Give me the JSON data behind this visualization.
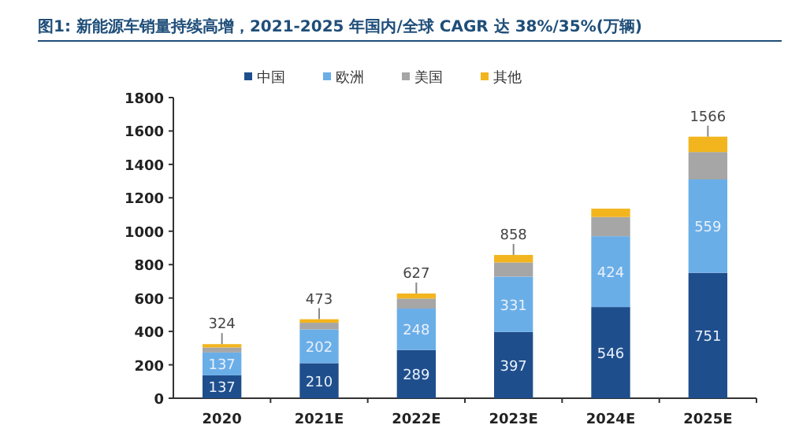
{
  "chart_data": {
    "type": "bar",
    "stacked": true,
    "title": "图1: 新能源车销量持续高增，2021-2025 年国内/全球 CAGR 达 38%/35%(万辆)",
    "categories": [
      "2020",
      "2021E",
      "2022E",
      "2023E",
      "2024E",
      "2025E"
    ],
    "series": [
      {
        "name": "中国",
        "color": "#1f4e8c",
        "values": [
          137,
          210,
          289,
          397,
          546,
          751
        ],
        "value_labels": [
          "137",
          "210",
          "289",
          "397",
          "546",
          "751"
        ]
      },
      {
        "name": "欧洲",
        "color": "#6aaee8",
        "values": [
          137,
          202,
          248,
          331,
          424,
          559
        ],
        "value_labels": [
          "137",
          "202",
          "248",
          "331",
          "424",
          "559"
        ]
      },
      {
        "name": "美国",
        "color": "#a6a6a6",
        "values": [
          30,
          40,
          60,
          85,
          115,
          164
        ]
      },
      {
        "name": "其他",
        "color": "#f2b51d",
        "values": [
          20,
          21,
          30,
          45,
          50,
          92
        ]
      }
    ],
    "totals": [
      "324",
      "473",
      "627",
      "858",
      null,
      "1566"
    ],
    "ylim": [
      0,
      1800
    ],
    "yticks": [
      0,
      200,
      400,
      600,
      800,
      1000,
      1200,
      1400,
      1600,
      1800
    ],
    "grid": false,
    "legend": "top"
  }
}
